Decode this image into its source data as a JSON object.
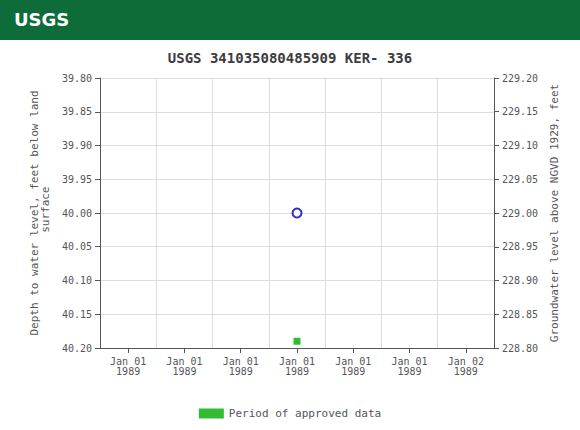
{
  "chart_data": {
    "type": "scatter",
    "title": "USGS 341035080485909 KER- 336",
    "annotations": [
      "USGS"
    ],
    "ylabel": "Depth to water level, feet below land\n surface",
    "y2label": "Groundwater level above NGVD 1929, feet",
    "categories": [
      "Jan 01\n1989",
      "Jan 01\n1989",
      "Jan 01\n1989",
      "Jan 01\n1989",
      "Jan 01\n1989",
      "Jan 01\n1989",
      "Jan 02\n1989"
    ],
    "series": [
      {
        "color": "#0000bb",
        "marker": "open_circle",
        "values": [
          null,
          null,
          null,
          40.0,
          null,
          null,
          null
        ]
      },
      {
        "name": "Period of approved data",
        "color": "#00aa00",
        "marker": "square",
        "values": [
          null,
          null,
          null,
          40.19,
          null,
          null,
          null
        ]
      }
    ],
    "ylim": [
      40.2,
      39.8
    ],
    "yticks": [
      {
        "value": 39.8,
        "label": "39.80"
      },
      {
        "value": 39.85,
        "label": "39.85"
      },
      {
        "value": 39.9,
        "label": "39.90"
      },
      {
        "value": 39.95,
        "label": "39.95"
      },
      {
        "value": 40.0,
        "label": "40.00"
      },
      {
        "value": 40.05,
        "label": "40.05"
      },
      {
        "value": 40.1,
        "label": "40.10"
      },
      {
        "value": 40.15,
        "label": "40.15"
      },
      {
        "value": 40.2,
        "label": "40.20"
      }
    ],
    "y2lim": [
      228.8,
      229.2
    ],
    "y2ticks": [
      {
        "value": 229.2,
        "label": "229.20"
      },
      {
        "value": 229.15,
        "label": "229.15"
      },
      {
        "value": 229.1,
        "label": "229.10"
      },
      {
        "value": 229.05,
        "label": "229.05"
      },
      {
        "value": 229.0,
        "label": "229.00"
      },
      {
        "value": 228.95,
        "label": "228.95"
      },
      {
        "value": 228.9,
        "label": "228.90"
      },
      {
        "value": 228.85,
        "label": "228.85"
      },
      {
        "value": 228.8,
        "label": "228.80"
      }
    ],
    "grid": true,
    "legend": "bottom"
  }
}
